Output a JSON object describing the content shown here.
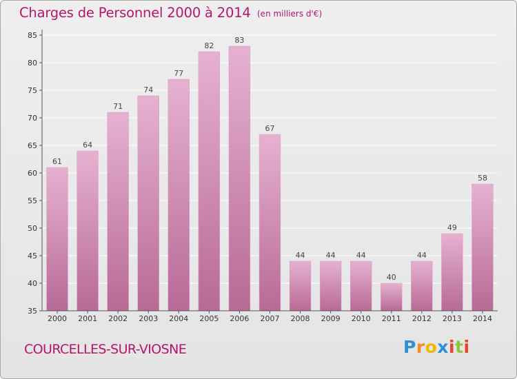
{
  "header": {
    "title": "Charges de Personnel 2000 à 2014",
    "unit_note": "(en milliers d'€)"
  },
  "footer": {
    "commune": "COURCELLES-SUR-VIOSNE",
    "logo": {
      "letters": [
        "P",
        "r",
        "o",
        "x",
        "i",
        "t",
        "i"
      ],
      "colors": [
        "#2f8fd6",
        "#f28c28",
        "#f2b705",
        "#2f8fd6",
        "#e8442d",
        "#8cc63f",
        "#e8442d"
      ]
    }
  },
  "colors": {
    "title": "#b5156e",
    "bar_top": "#e6b1d1",
    "bar_bottom": "#b76a96",
    "grid": "#ffffff",
    "axis": "#555555"
  },
  "chart_data": {
    "type": "bar",
    "title": "Charges de Personnel 2000 à 2014",
    "subtitle": "(en milliers d'€)",
    "xlabel": "",
    "ylabel": "",
    "categories": [
      "2000",
      "2001",
      "2002",
      "2003",
      "2004",
      "2005",
      "2006",
      "2007",
      "2008",
      "2009",
      "2010",
      "2011",
      "2012",
      "2013",
      "2014"
    ],
    "values": [
      61,
      64,
      71,
      74,
      77,
      82,
      83,
      67,
      44,
      44,
      44,
      40,
      44,
      49,
      58
    ],
    "ylim": [
      35,
      85
    ],
    "yticks": [
      35,
      40,
      45,
      50,
      55,
      60,
      65,
      70,
      75,
      80,
      85
    ],
    "grid": true,
    "legend": "none"
  }
}
